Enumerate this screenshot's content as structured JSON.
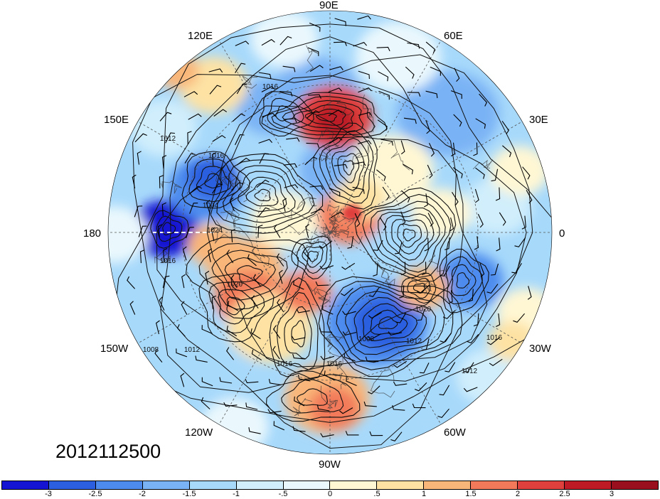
{
  "map": {
    "projection": "north-polar-stereographic",
    "field": "sea-level-pressure-contours-over-anomaly-shading-with-wind-barbs",
    "longitude_labels": [
      "90E",
      "60E",
      "30E",
      "0",
      "30W",
      "60W",
      "90W",
      "120W",
      "150W",
      "180",
      "150E",
      "120E"
    ],
    "contour_labels": [
      "1016",
      "1012",
      "1016",
      "1004",
      "1024",
      "1020",
      "1016",
      "1008",
      "1012",
      "1016",
      "1016",
      "1008",
      "1012",
      "1020",
      "1012",
      "1016"
    ],
    "timestamp": "2012112500"
  },
  "colorbar": {
    "tick_labels": [
      "-3",
      "-2.5",
      "-2",
      "-1.5",
      "-1",
      "-.5",
      "0",
      ".5",
      "1",
      "1.5",
      "2",
      "2.5",
      "3"
    ],
    "colors": [
      "#1414d2",
      "#2c5fe0",
      "#4d8cee",
      "#7ab3f5",
      "#a7d9fb",
      "#d0eefc",
      "#eaf8fd",
      "#fff7d4",
      "#fde2a4",
      "#f9b679",
      "#f27a5a",
      "#e0403d",
      "#bd1a26",
      "#9a0f1e"
    ]
  },
  "colors": {
    "contour": "#111111",
    "grid": "#555555",
    "coast": "#333333"
  }
}
